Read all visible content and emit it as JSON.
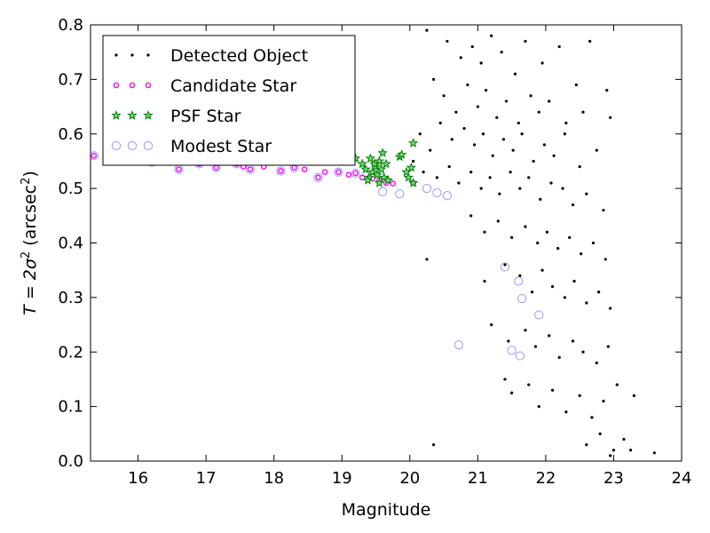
{
  "chart_data": {
    "type": "scatter",
    "xlabel": "Magnitude",
    "ylabel": {
      "prefix": "T = 2σ",
      "sup": "2",
      "unit": "(arcsec",
      "unit_sup": "2",
      "unit_close": ")"
    },
    "xlim": [
      15.3,
      24.0
    ],
    "ylim": [
      0.0,
      0.8
    ],
    "xticks": [
      16,
      17,
      18,
      19,
      20,
      21,
      22,
      23,
      24
    ],
    "yticks": [
      0.0,
      0.1,
      0.2,
      0.3,
      0.4,
      0.5,
      0.6,
      0.7,
      0.8
    ],
    "grid": false,
    "legend_position": "top-left",
    "series": [
      {
        "name": "Detected Object",
        "marker": "dot",
        "color": "#000000",
        "points": [
          [
            20.25,
            0.79
          ],
          [
            20.55,
            0.77
          ],
          [
            20.75,
            0.74
          ],
          [
            20.92,
            0.76
          ],
          [
            21.05,
            0.73
          ],
          [
            21.2,
            0.78
          ],
          [
            21.35,
            0.75
          ],
          [
            21.55,
            0.71
          ],
          [
            21.7,
            0.77
          ],
          [
            21.95,
            0.73
          ],
          [
            22.2,
            0.76
          ],
          [
            22.45,
            0.69
          ],
          [
            22.65,
            0.77
          ],
          [
            22.9,
            0.68
          ],
          [
            20.35,
            0.7
          ],
          [
            20.5,
            0.67
          ],
          [
            20.68,
            0.64
          ],
          [
            20.85,
            0.69
          ],
          [
            21.0,
            0.65
          ],
          [
            21.12,
            0.68
          ],
          [
            21.28,
            0.63
          ],
          [
            21.42,
            0.66
          ],
          [
            21.6,
            0.62
          ],
          [
            21.78,
            0.67
          ],
          [
            21.9,
            0.64
          ],
          [
            22.05,
            0.66
          ],
          [
            22.3,
            0.62
          ],
          [
            22.55,
            0.64
          ],
          [
            22.95,
            0.63
          ],
          [
            20.15,
            0.6
          ],
          [
            20.3,
            0.57
          ],
          [
            20.45,
            0.62
          ],
          [
            20.62,
            0.59
          ],
          [
            20.8,
            0.61
          ],
          [
            20.95,
            0.58
          ],
          [
            21.08,
            0.6
          ],
          [
            21.22,
            0.56
          ],
          [
            21.38,
            0.59
          ],
          [
            21.52,
            0.57
          ],
          [
            21.65,
            0.6
          ],
          [
            21.82,
            0.55
          ],
          [
            21.98,
            0.58
          ],
          [
            22.12,
            0.56
          ],
          [
            22.28,
            0.6
          ],
          [
            22.5,
            0.54
          ],
          [
            22.75,
            0.57
          ],
          [
            20.05,
            0.55
          ],
          [
            20.2,
            0.53
          ],
          [
            20.4,
            0.52
          ],
          [
            20.58,
            0.54
          ],
          [
            20.72,
            0.51
          ],
          [
            20.9,
            0.53
          ],
          [
            21.05,
            0.5
          ],
          [
            21.18,
            0.52
          ],
          [
            21.32,
            0.49
          ],
          [
            21.48,
            0.53
          ],
          [
            21.62,
            0.5
          ],
          [
            21.75,
            0.52
          ],
          [
            21.92,
            0.48
          ],
          [
            22.08,
            0.51
          ],
          [
            22.25,
            0.5
          ],
          [
            22.4,
            0.47
          ],
          [
            22.6,
            0.49
          ],
          [
            22.85,
            0.46
          ],
          [
            20.9,
            0.45
          ],
          [
            21.1,
            0.42
          ],
          [
            21.3,
            0.44
          ],
          [
            21.5,
            0.41
          ],
          [
            21.7,
            0.43
          ],
          [
            21.88,
            0.4
          ],
          [
            22.02,
            0.42
          ],
          [
            22.18,
            0.39
          ],
          [
            22.35,
            0.41
          ],
          [
            22.52,
            0.38
          ],
          [
            22.7,
            0.4
          ],
          [
            22.88,
            0.37
          ],
          [
            20.25,
            0.37
          ],
          [
            21.1,
            0.33
          ],
          [
            21.4,
            0.36
          ],
          [
            21.62,
            0.34
          ],
          [
            21.8,
            0.31
          ],
          [
            21.95,
            0.35
          ],
          [
            22.1,
            0.32
          ],
          [
            22.28,
            0.3
          ],
          [
            22.42,
            0.33
          ],
          [
            22.6,
            0.29
          ],
          [
            22.78,
            0.31
          ],
          [
            22.95,
            0.28
          ],
          [
            21.2,
            0.25
          ],
          [
            21.45,
            0.22
          ],
          [
            21.7,
            0.24
          ],
          [
            21.85,
            0.21
          ],
          [
            22.05,
            0.23
          ],
          [
            22.2,
            0.19
          ],
          [
            22.4,
            0.22
          ],
          [
            22.55,
            0.2
          ],
          [
            22.75,
            0.18
          ],
          [
            22.92,
            0.21
          ],
          [
            21.4,
            0.15
          ],
          [
            21.5,
            0.125
          ],
          [
            21.75,
            0.14
          ],
          [
            21.9,
            0.1
          ],
          [
            22.1,
            0.13
          ],
          [
            22.3,
            0.09
          ],
          [
            22.5,
            0.12
          ],
          [
            22.68,
            0.08
          ],
          [
            22.85,
            0.11
          ],
          [
            23.05,
            0.14
          ],
          [
            23.3,
            0.12
          ],
          [
            20.35,
            0.03
          ],
          [
            22.6,
            0.03
          ],
          [
            22.8,
            0.05
          ],
          [
            23.0,
            0.02
          ],
          [
            23.15,
            0.04
          ],
          [
            23.25,
            0.02
          ],
          [
            23.6,
            0.015
          ],
          [
            22.95,
            0.01
          ]
        ]
      },
      {
        "name": "Candidate Star",
        "marker": "circle-small",
        "color": "#ff00ff",
        "points": [
          [
            15.35,
            0.56
          ],
          [
            15.8,
            0.55
          ],
          [
            16.2,
            0.548
          ],
          [
            16.6,
            0.535
          ],
          [
            16.9,
            0.545
          ],
          [
            17.15,
            0.538
          ],
          [
            17.45,
            0.545
          ],
          [
            17.55,
            0.54
          ],
          [
            17.65,
            0.535
          ],
          [
            17.85,
            0.54
          ],
          [
            18.1,
            0.532
          ],
          [
            18.3,
            0.538
          ],
          [
            18.45,
            0.535
          ],
          [
            18.65,
            0.52
          ],
          [
            18.75,
            0.53
          ],
          [
            18.95,
            0.53
          ],
          [
            19.1,
            0.525
          ],
          [
            19.2,
            0.528
          ],
          [
            19.3,
            0.52
          ],
          [
            19.45,
            0.518
          ],
          [
            19.55,
            0.515
          ],
          [
            19.65,
            0.51
          ],
          [
            19.75,
            0.509
          ],
          [
            20.05,
            0.51
          ]
        ]
      },
      {
        "name": "PSF Star",
        "marker": "star",
        "color": "#008000",
        "points": [
          [
            19.2,
            0.555
          ],
          [
            19.3,
            0.545
          ],
          [
            19.35,
            0.535
          ],
          [
            19.4,
            0.52
          ],
          [
            19.45,
            0.53
          ],
          [
            19.5,
            0.54
          ],
          [
            19.52,
            0.525
          ],
          [
            19.55,
            0.55
          ],
          [
            19.58,
            0.535
          ],
          [
            19.6,
            0.565
          ],
          [
            19.62,
            0.52
          ],
          [
            19.65,
            0.545
          ],
          [
            19.68,
            0.515
          ],
          [
            19.55,
            0.51
          ],
          [
            19.48,
            0.545
          ],
          [
            19.42,
            0.555
          ],
          [
            19.38,
            0.515
          ],
          [
            19.85,
            0.558
          ],
          [
            19.88,
            0.562
          ],
          [
            19.95,
            0.53
          ],
          [
            19.98,
            0.52
          ],
          [
            20.02,
            0.538
          ],
          [
            20.05,
            0.51
          ],
          [
            20.05,
            0.583
          ]
        ]
      },
      {
        "name": "Modest Star",
        "marker": "circle-open",
        "color": "#9999ff",
        "points": [
          [
            15.35,
            0.56
          ],
          [
            15.8,
            0.55
          ],
          [
            16.2,
            0.548
          ],
          [
            16.6,
            0.535
          ],
          [
            16.9,
            0.545
          ],
          [
            17.15,
            0.538
          ],
          [
            17.45,
            0.545
          ],
          [
            17.65,
            0.535
          ],
          [
            18.1,
            0.532
          ],
          [
            18.3,
            0.538
          ],
          [
            18.65,
            0.52
          ],
          [
            18.95,
            0.53
          ],
          [
            19.2,
            0.528
          ],
          [
            19.6,
            0.494
          ],
          [
            19.85,
            0.49
          ],
          [
            20.25,
            0.5
          ],
          [
            20.4,
            0.492
          ],
          [
            20.55,
            0.487
          ],
          [
            20.72,
            0.213
          ],
          [
            21.4,
            0.356
          ],
          [
            21.5,
            0.203
          ],
          [
            21.6,
            0.33
          ],
          [
            21.65,
            0.298
          ],
          [
            21.62,
            0.193
          ],
          [
            21.9,
            0.268
          ]
        ]
      }
    ]
  }
}
